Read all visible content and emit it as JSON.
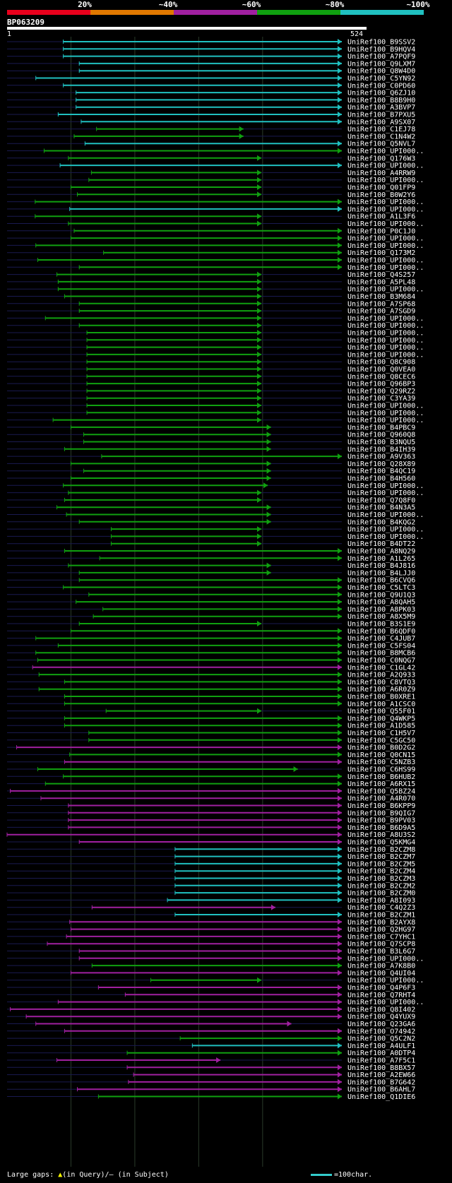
{
  "query": {
    "id": "BP063209",
    "start": "1",
    "end": "524"
  },
  "identity_legend": [
    {
      "label": "20%",
      "color": "#e8001c"
    },
    {
      "label": "~40%",
      "color": "#e07800"
    },
    {
      "label": "~60%",
      "color": "#a020a0"
    },
    {
      "label": "~80%",
      "color": "#10a010"
    },
    {
      "label": "~100%",
      "color": "#20c0c0"
    }
  ],
  "footer": {
    "gaps_label": "Large gaps:",
    "gaps_query": "(in Query)/",
    "gaps_subject": "(in Subject)",
    "scale_label": "=100char."
  },
  "chart_data": {
    "type": "alignment-overview",
    "query_length": 524,
    "hits": [
      {
        "name": "UniRef100_B9SSV2",
        "start": 88,
        "end": 524,
        "identity": "~100%"
      },
      {
        "name": "UniRef100_B9HQV4",
        "start": 88,
        "end": 524,
        "identity": "~100%"
      },
      {
        "name": "UniRef100_A7PQF9",
        "start": 88,
        "end": 524,
        "identity": "~100%"
      },
      {
        "name": "UniRef100_Q9LXM7",
        "start": 113,
        "end": 524,
        "identity": "~100%"
      },
      {
        "name": "UniRef100_Q8W4D0",
        "start": 113,
        "end": 524,
        "identity": "~100%"
      },
      {
        "name": "UniRef100_C5YN92",
        "start": 45,
        "end": 524,
        "identity": "~100%"
      },
      {
        "name": "UniRef100_C0PD60",
        "start": 88,
        "end": 524,
        "identity": "~100%"
      },
      {
        "name": "UniRef100_Q6ZJ10",
        "start": 108,
        "end": 524,
        "identity": "~100%"
      },
      {
        "name": "UniRef100_B8B9H0",
        "start": 108,
        "end": 524,
        "identity": "~100%"
      },
      {
        "name": "UniRef100_A3BVP7",
        "start": 108,
        "end": 524,
        "identity": "~100%"
      },
      {
        "name": "UniRef100_B7PXU5",
        "start": 80,
        "end": 524,
        "identity": "~100%"
      },
      {
        "name": "UniRef100_A9SX07",
        "start": 116,
        "end": 524,
        "identity": "~100%"
      },
      {
        "name": "UniRef100_C1EJ78",
        "start": 140,
        "end": 370,
        "identity": "~80%"
      },
      {
        "name": "UniRef100_C1N4W2",
        "start": 105,
        "end": 370,
        "identity": "~80%"
      },
      {
        "name": "UniRef100_Q5NVL7",
        "start": 122,
        "end": 524,
        "identity": "~100%"
      },
      {
        "name": "UniRef100_UPI000..",
        "start": 58,
        "end": 524,
        "identity": "~80%"
      },
      {
        "name": "UniRef100_Q176W3",
        "start": 96,
        "end": 398,
        "identity": "~80%"
      },
      {
        "name": "UniRef100_UPI000..",
        "start": 83,
        "end": 524,
        "identity": "~100%"
      },
      {
        "name": "UniRef100_A4RRW9",
        "start": 132,
        "end": 398,
        "identity": "~80%"
      },
      {
        "name": "UniRef100_UPI000..",
        "start": 128,
        "end": 398,
        "identity": "~80%"
      },
      {
        "name": "UniRef100_Q01FP9",
        "start": 100,
        "end": 398,
        "identity": "~80%"
      },
      {
        "name": "UniRef100_B0W2Y6",
        "start": 110,
        "end": 398,
        "identity": "~80%"
      },
      {
        "name": "UniRef100_UPI000..",
        "start": 44,
        "end": 524,
        "identity": "~80%"
      },
      {
        "name": "UniRef100_UPI000..",
        "start": 98,
        "end": 524,
        "identity": "~100%"
      },
      {
        "name": "UniRef100_A1L3F6",
        "start": 44,
        "end": 398,
        "identity": "~80%"
      },
      {
        "name": "UniRef100_UPI000..",
        "start": 96,
        "end": 398,
        "identity": "~80%"
      },
      {
        "name": "UniRef100_P0C1J0",
        "start": 105,
        "end": 524,
        "identity": "~80%"
      },
      {
        "name": "UniRef100_UPI000..",
        "start": 100,
        "end": 524,
        "identity": "~80%"
      },
      {
        "name": "UniRef100_UPI000..",
        "start": 45,
        "end": 524,
        "identity": "~80%"
      },
      {
        "name": "UniRef100_Q173M2",
        "start": 151,
        "end": 524,
        "identity": "~80%"
      },
      {
        "name": "UniRef100_UPI000..",
        "start": 48,
        "end": 524,
        "identity": "~80%"
      },
      {
        "name": "UniRef100_UPI000..",
        "start": 113,
        "end": 524,
        "identity": "~80%"
      },
      {
        "name": "UniRef100_Q4S257",
        "start": 78,
        "end": 398,
        "identity": "~80%"
      },
      {
        "name": "UniRef100_A5PL48",
        "start": 80,
        "end": 398,
        "identity": "~80%"
      },
      {
        "name": "UniRef100_UPI000..",
        "start": 80,
        "end": 398,
        "identity": "~80%"
      },
      {
        "name": "UniRef100_B3M684",
        "start": 90,
        "end": 398,
        "identity": "~80%"
      },
      {
        "name": "UniRef100_A7SP68",
        "start": 113,
        "end": 398,
        "identity": "~80%"
      },
      {
        "name": "UniRef100_A7SGD9",
        "start": 113,
        "end": 398,
        "identity": "~80%"
      },
      {
        "name": "UniRef100_UPI000..",
        "start": 60,
        "end": 398,
        "identity": "~80%"
      },
      {
        "name": "UniRef100_UPI000..",
        "start": 113,
        "end": 398,
        "identity": "~80%"
      },
      {
        "name": "UniRef100_UPI000..",
        "start": 125,
        "end": 398,
        "identity": "~80%"
      },
      {
        "name": "UniRef100_UPI000..",
        "start": 125,
        "end": 398,
        "identity": "~80%"
      },
      {
        "name": "UniRef100_UPI000..",
        "start": 125,
        "end": 398,
        "identity": "~80%"
      },
      {
        "name": "UniRef100_UPI000..",
        "start": 125,
        "end": 398,
        "identity": "~80%"
      },
      {
        "name": "UniRef100_Q8C908",
        "start": 125,
        "end": 398,
        "identity": "~80%"
      },
      {
        "name": "UniRef100_Q0VEA0",
        "start": 125,
        "end": 398,
        "identity": "~80%"
      },
      {
        "name": "UniRef100_Q8CEC6",
        "start": 125,
        "end": 398,
        "identity": "~80%"
      },
      {
        "name": "UniRef100_Q96BP3",
        "start": 125,
        "end": 398,
        "identity": "~80%"
      },
      {
        "name": "UniRef100_Q29RZ2",
        "start": 125,
        "end": 398,
        "identity": "~80%"
      },
      {
        "name": "UniRef100_C3YA39",
        "start": 125,
        "end": 398,
        "identity": "~80%"
      },
      {
        "name": "UniRef100_UPI000..",
        "start": 125,
        "end": 398,
        "identity": "~80%"
      },
      {
        "name": "UniRef100_UPI000..",
        "start": 125,
        "end": 398,
        "identity": "~80%"
      },
      {
        "name": "UniRef100_UPI000..",
        "start": 72,
        "end": 398,
        "identity": "~80%"
      },
      {
        "name": "UniRef100_B4PBC9",
        "start": 100,
        "end": 413,
        "identity": "~80%"
      },
      {
        "name": "UniRef100_Q960Q8",
        "start": 120,
        "end": 413,
        "identity": "~80%"
      },
      {
        "name": "UniRef100_B3NQU5",
        "start": 120,
        "end": 413,
        "identity": "~80%"
      },
      {
        "name": "UniRef100_B4IH39",
        "start": 90,
        "end": 413,
        "identity": "~80%"
      },
      {
        "name": "UniRef100_A9V363",
        "start": 148,
        "end": 524,
        "identity": "~80%"
      },
      {
        "name": "UniRef100_Q28X89",
        "start": 100,
        "end": 413,
        "identity": "~80%"
      },
      {
        "name": "UniRef100_B4QC19",
        "start": 120,
        "end": 413,
        "identity": "~80%"
      },
      {
        "name": "UniRef100_B4H560",
        "start": 100,
        "end": 413,
        "identity": "~80%"
      },
      {
        "name": "UniRef100_UPI000..",
        "start": 88,
        "end": 408,
        "identity": "~80%"
      },
      {
        "name": "UniRef100_UPI000..",
        "start": 96,
        "end": 398,
        "identity": "~80%"
      },
      {
        "name": "UniRef100_Q7Q8F0",
        "start": 90,
        "end": 398,
        "identity": "~80%"
      },
      {
        "name": "UniRef100_B4N3A5",
        "start": 78,
        "end": 413,
        "identity": "~80%"
      },
      {
        "name": "UniRef100_UPI000..",
        "start": 93,
        "end": 413,
        "identity": "~80%"
      },
      {
        "name": "UniRef100_B4KQG2",
        "start": 113,
        "end": 413,
        "identity": "~80%"
      },
      {
        "name": "UniRef100_UPI000..",
        "start": 163,
        "end": 398,
        "identity": "~80%"
      },
      {
        "name": "UniRef100_UPI000..",
        "start": 163,
        "end": 398,
        "identity": "~80%"
      },
      {
        "name": "UniRef100_B4DT22",
        "start": 163,
        "end": 398,
        "identity": "~80%"
      },
      {
        "name": "UniRef100_A8NQ29",
        "start": 90,
        "end": 524,
        "identity": "~80%"
      },
      {
        "name": "UniRef100_A1L265",
        "start": 145,
        "end": 524,
        "identity": "~80%"
      },
      {
        "name": "UniRef100_B4J816",
        "start": 96,
        "end": 413,
        "identity": "~80%"
      },
      {
        "name": "UniRef100_B4LJJ0",
        "start": 113,
        "end": 413,
        "identity": "~80%"
      },
      {
        "name": "UniRef100_B6CVQ6",
        "start": 113,
        "end": 524,
        "identity": "~80%"
      },
      {
        "name": "UniRef100_C5LTC3",
        "start": 88,
        "end": 524,
        "identity": "~80%"
      },
      {
        "name": "UniRef100_Q9U1Q3",
        "start": 128,
        "end": 524,
        "identity": "~80%"
      },
      {
        "name": "UniRef100_A8QAH5",
        "start": 108,
        "end": 524,
        "identity": "~80%"
      },
      {
        "name": "UniRef100_A8PK03",
        "start": 150,
        "end": 524,
        "identity": "~80%"
      },
      {
        "name": "UniRef100_A8X5M9",
        "start": 135,
        "end": 524,
        "identity": "~80%"
      },
      {
        "name": "UniRef100_B3S1E9",
        "start": 113,
        "end": 398,
        "identity": "~80%"
      },
      {
        "name": "UniRef100_B6QDF0",
        "start": 100,
        "end": 524,
        "identity": "~80%"
      },
      {
        "name": "UniRef100_C4JUB7",
        "start": 45,
        "end": 524,
        "identity": "~80%"
      },
      {
        "name": "UniRef100_C5FS04",
        "start": 80,
        "end": 524,
        "identity": "~80%"
      },
      {
        "name": "UniRef100_B8MCB6",
        "start": 45,
        "end": 524,
        "identity": "~80%"
      },
      {
        "name": "UniRef100_C0NQG7",
        "start": 48,
        "end": 524,
        "identity": "~80%"
      },
      {
        "name": "UniRef100_C1GL42",
        "start": 40,
        "end": 524,
        "identity": "~60%"
      },
      {
        "name": "UniRef100_A2Q933",
        "start": 50,
        "end": 524,
        "identity": "~80%"
      },
      {
        "name": "UniRef100_C8VTQ3",
        "start": 90,
        "end": 524,
        "identity": "~80%"
      },
      {
        "name": "UniRef100_A6R0Z9",
        "start": 50,
        "end": 524,
        "identity": "~80%"
      },
      {
        "name": "UniRef100_B0XRE1",
        "start": 90,
        "end": 524,
        "identity": "~80%"
      },
      {
        "name": "UniRef100_A1CSC0",
        "start": 90,
        "end": 524,
        "identity": "~80%"
      },
      {
        "name": "UniRef100_Q55F01",
        "start": 155,
        "end": 398,
        "identity": "~80%"
      },
      {
        "name": "UniRef100_Q4WKP5",
        "start": 90,
        "end": 524,
        "identity": "~80%"
      },
      {
        "name": "UniRef100_A1D585",
        "start": 90,
        "end": 524,
        "identity": "~80%"
      },
      {
        "name": "UniRef100_C1H5V7",
        "start": 128,
        "end": 524,
        "identity": "~80%"
      },
      {
        "name": "UniRef100_C5GC50",
        "start": 128,
        "end": 524,
        "identity": "~80%"
      },
      {
        "name": "UniRef100_B0D2G2",
        "start": 15,
        "end": 524,
        "identity": "~60%"
      },
      {
        "name": "UniRef100_Q0CN15",
        "start": 98,
        "end": 524,
        "identity": "~80%"
      },
      {
        "name": "UniRef100_C5NZB3",
        "start": 90,
        "end": 524,
        "identity": "~60%"
      },
      {
        "name": "UniRef100_C6HS99",
        "start": 48,
        "end": 455,
        "identity": "~80%"
      },
      {
        "name": "UniRef100_B6HUB2",
        "start": 88,
        "end": 524,
        "identity": "~80%"
      },
      {
        "name": "UniRef100_A6RX15",
        "start": 60,
        "end": 524,
        "identity": "~80%"
      },
      {
        "name": "UniRef100_Q5BZ24",
        "start": 5,
        "end": 524,
        "identity": "~60%"
      },
      {
        "name": "UniRef100_A4R070",
        "start": 53,
        "end": 524,
        "identity": "~60%"
      },
      {
        "name": "UniRef100_B6KPP9",
        "start": 96,
        "end": 524,
        "identity": "~60%"
      },
      {
        "name": "UniRef100_B9QIG7",
        "start": 96,
        "end": 524,
        "identity": "~60%"
      },
      {
        "name": "UniRef100_B9PV03",
        "start": 96,
        "end": 524,
        "identity": "~60%"
      },
      {
        "name": "UniRef100_B6D9A5",
        "start": 96,
        "end": 524,
        "identity": "~60%"
      },
      {
        "name": "UniRef100_A8U3S2",
        "start": 0,
        "end": 524,
        "identity": "~60%"
      },
      {
        "name": "UniRef100_Q5KMG4",
        "start": 113,
        "end": 524,
        "identity": "~60%"
      },
      {
        "name": "UniRef100_B2CZM8",
        "start": 263,
        "end": 524,
        "identity": "~100%"
      },
      {
        "name": "UniRef100_B2CZM7",
        "start": 263,
        "end": 524,
        "identity": "~100%"
      },
      {
        "name": "UniRef100_B2CZM5",
        "start": 263,
        "end": 524,
        "identity": "~100%"
      },
      {
        "name": "UniRef100_B2CZM4",
        "start": 263,
        "end": 524,
        "identity": "~100%"
      },
      {
        "name": "UniRef100_B2CZM3",
        "start": 263,
        "end": 524,
        "identity": "~100%"
      },
      {
        "name": "UniRef100_B2CZM2",
        "start": 263,
        "end": 524,
        "identity": "~100%"
      },
      {
        "name": "UniRef100_B2CZM0",
        "start": 263,
        "end": 524,
        "identity": "~100%"
      },
      {
        "name": "UniRef100_A8I093",
        "start": 251,
        "end": 524,
        "identity": "~100%"
      },
      {
        "name": "UniRef100_C4Q2Z3",
        "start": 133,
        "end": 420,
        "identity": "~60%"
      },
      {
        "name": "UniRef100_B2CZM1",
        "start": 263,
        "end": 524,
        "identity": "~100%"
      },
      {
        "name": "UniRef100_B2AYX8",
        "start": 98,
        "end": 524,
        "identity": "~60%"
      },
      {
        "name": "UniRef100_Q2HG97",
        "start": 100,
        "end": 524,
        "identity": "~60%"
      },
      {
        "name": "UniRef100_C7YHC1",
        "start": 93,
        "end": 524,
        "identity": "~60%"
      },
      {
        "name": "UniRef100_Q7SCP8",
        "start": 63,
        "end": 524,
        "identity": "~60%"
      },
      {
        "name": "UniRef100_B3L6G7",
        "start": 113,
        "end": 524,
        "identity": "~60%"
      },
      {
        "name": "UniRef100_UPI000..",
        "start": 113,
        "end": 524,
        "identity": "~60%"
      },
      {
        "name": "UniRef100_A7K8B0",
        "start": 133,
        "end": 524,
        "identity": "~80%"
      },
      {
        "name": "UniRef100_Q4UI04",
        "start": 100,
        "end": 524,
        "identity": "~60%"
      },
      {
        "name": "UniRef100_UPI000..",
        "start": 225,
        "end": 398,
        "identity": "~80%"
      },
      {
        "name": "UniRef100_Q4P6F3",
        "start": 143,
        "end": 524,
        "identity": "~60%"
      },
      {
        "name": "UniRef100_Q7RHT4",
        "start": 185,
        "end": 524,
        "identity": "~60%"
      },
      {
        "name": "UniRef100_UPI000..",
        "start": 80,
        "end": 524,
        "identity": "~60%"
      },
      {
        "name": "UniRef100_Q8I402",
        "start": 5,
        "end": 524,
        "identity": "~60%"
      },
      {
        "name": "UniRef100_Q4YUX9",
        "start": 30,
        "end": 524,
        "identity": "~60%"
      },
      {
        "name": "UniRef100_Q23GA6",
        "start": 45,
        "end": 445,
        "identity": "~60%"
      },
      {
        "name": "UniRef100_O74942",
        "start": 90,
        "end": 524,
        "identity": "~60%"
      },
      {
        "name": "UniRef100_Q5C2N2",
        "start": 271,
        "end": 524,
        "identity": "~80%"
      },
      {
        "name": "UniRef100_A4ULF1",
        "start": 290,
        "end": 524,
        "identity": "~100%"
      },
      {
        "name": "UniRef100_A0DTP4",
        "start": 188,
        "end": 524,
        "identity": "~80%"
      },
      {
        "name": "UniRef100_A7F5C1",
        "start": 78,
        "end": 334,
        "identity": "~60%"
      },
      {
        "name": "UniRef100_B8BX57",
        "start": 188,
        "end": 524,
        "identity": "~60%"
      },
      {
        "name": "UniRef100_A2EW66",
        "start": 198,
        "end": 524,
        "identity": "~60%"
      },
      {
        "name": "UniRef100_B7G642",
        "start": 190,
        "end": 524,
        "identity": "~60%"
      },
      {
        "name": "UniRef100_B6AHL7",
        "start": 110,
        "end": 524,
        "identity": "~60%"
      },
      {
        "name": "UniRef100_Q1DIE6",
        "start": 143,
        "end": 524,
        "identity": "~80%"
      }
    ]
  }
}
